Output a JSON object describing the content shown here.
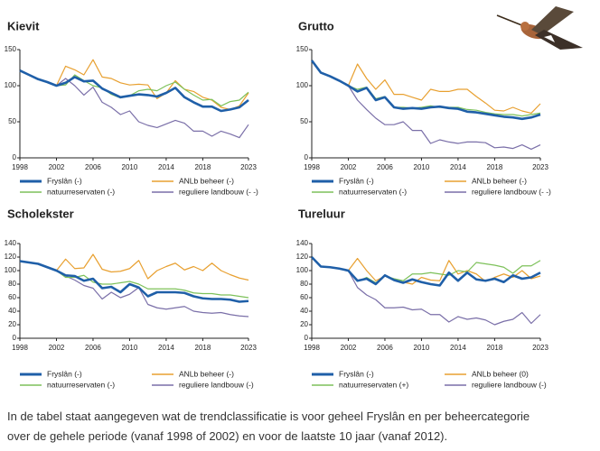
{
  "chart_data": [
    {
      "type": "line",
      "title": "Kievit",
      "x": [
        1998,
        1999,
        2000,
        2001,
        2002,
        2003,
        2004,
        2005,
        2006,
        2007,
        2008,
        2009,
        2010,
        2011,
        2012,
        2013,
        2014,
        2015,
        2016,
        2017,
        2018,
        2019,
        2020,
        2021,
        2022,
        2023
      ],
      "xlim": [
        1998,
        2023
      ],
      "xticks": [
        1998,
        2002,
        2006,
        2010,
        2014,
        2018,
        2023
      ],
      "ylim": [
        0,
        150
      ],
      "yticks": [
        0,
        50,
        100,
        150
      ],
      "series": [
        {
          "name": "Fryslân (-)",
          "color": "#1f5fa8",
          "values": [
            121,
            115,
            109,
            105,
            100,
            104,
            112,
            106,
            107,
            96,
            90,
            84,
            86,
            88,
            87,
            85,
            90,
            97,
            84,
            77,
            71,
            71,
            65,
            67,
            70,
            80
          ]
        },
        {
          "name": "ANLb beheer (-)",
          "color": "#e8a030",
          "values": [
            null,
            null,
            null,
            null,
            100,
            127,
            122,
            115,
            136,
            112,
            110,
            104,
            101,
            102,
            101,
            82,
            90,
            107,
            95,
            92,
            84,
            80,
            70,
            67,
            72,
            90
          ]
        },
        {
          "name": "natuurreservaten (-)",
          "color": "#7dc15a",
          "values": [
            null,
            null,
            null,
            null,
            100,
            101,
            115,
            107,
            100,
            97,
            88,
            83,
            86,
            93,
            95,
            93,
            100,
            105,
            95,
            87,
            80,
            81,
            72,
            78,
            80,
            91
          ]
        },
        {
          "name": "reguliere landbouw (- -)",
          "color": "#7a6fa8",
          "values": [
            null,
            null,
            null,
            null,
            100,
            110,
            100,
            87,
            98,
            77,
            70,
            60,
            65,
            50,
            45,
            42,
            47,
            52,
            48,
            37,
            37,
            30,
            37,
            33,
            28,
            46
          ]
        }
      ]
    },
    {
      "type": "line",
      "title": "Grutto",
      "x": [
        1998,
        1999,
        2000,
        2001,
        2002,
        2003,
        2004,
        2005,
        2006,
        2007,
        2008,
        2009,
        2010,
        2011,
        2012,
        2013,
        2014,
        2015,
        2016,
        2017,
        2018,
        2019,
        2020,
        2021,
        2022,
        2023
      ],
      "xlim": [
        1998,
        2023
      ],
      "xticks": [
        1998,
        2002,
        2006,
        2010,
        2014,
        2018,
        2023
      ],
      "ylim": [
        0,
        150
      ],
      "yticks": [
        0,
        50,
        100,
        150
      ],
      "series": [
        {
          "name": "Fryslân (-)",
          "color": "#1f5fa8",
          "values": [
            135,
            118,
            113,
            107,
            100,
            92,
            97,
            80,
            84,
            70,
            68,
            69,
            68,
            70,
            71,
            69,
            68,
            64,
            63,
            61,
            59,
            57,
            56,
            54,
            56,
            60
          ]
        },
        {
          "name": "ANLb beheer (-)",
          "color": "#e8a030",
          "values": [
            null,
            null,
            null,
            null,
            100,
            130,
            110,
            95,
            108,
            88,
            88,
            84,
            80,
            95,
            92,
            92,
            95,
            95,
            85,
            76,
            66,
            65,
            70,
            65,
            62,
            75
          ]
        },
        {
          "name": "natuurreservaten (-)",
          "color": "#7dc15a",
          "values": [
            null,
            null,
            null,
            null,
            100,
            95,
            98,
            82,
            85,
            70,
            70,
            69,
            70,
            72,
            70,
            70,
            70,
            67,
            66,
            63,
            61,
            60,
            60,
            58,
            60,
            62
          ]
        },
        {
          "name": "reguliere landbouw (- -)",
          "color": "#7a6fa8",
          "values": [
            null,
            null,
            null,
            null,
            100,
            80,
            67,
            55,
            46,
            46,
            50,
            38,
            38,
            20,
            25,
            22,
            20,
            22,
            22,
            21,
            14,
            15,
            13,
            18,
            12,
            18
          ]
        }
      ]
    },
    {
      "type": "line",
      "title": "Scholekster",
      "x": [
        1998,
        1999,
        2000,
        2001,
        2002,
        2003,
        2004,
        2005,
        2006,
        2007,
        2008,
        2009,
        2010,
        2011,
        2012,
        2013,
        2014,
        2015,
        2016,
        2017,
        2018,
        2019,
        2020,
        2021,
        2022,
        2023
      ],
      "xlim": [
        1998,
        2023
      ],
      "xticks": [
        1998,
        2002,
        2006,
        2010,
        2014,
        2018,
        2023
      ],
      "ylim": [
        0,
        140
      ],
      "yticks": [
        0,
        20,
        40,
        60,
        80,
        100,
        120,
        140
      ],
      "series": [
        {
          "name": "Fryslân (-)",
          "color": "#1f5fa8",
          "values": [
            114,
            112,
            110,
            105,
            100,
            93,
            92,
            85,
            88,
            74,
            76,
            68,
            80,
            75,
            62,
            68,
            68,
            68,
            67,
            62,
            59,
            58,
            58,
            57,
            54,
            55
          ]
        },
        {
          "name": "ANLb beheer (-)",
          "color": "#e8a030",
          "values": [
            null,
            null,
            null,
            null,
            100,
            117,
            103,
            104,
            124,
            102,
            98,
            99,
            103,
            115,
            88,
            100,
            106,
            111,
            101,
            106,
            100,
            111,
            100,
            94,
            89,
            86
          ]
        },
        {
          "name": "natuurreservaten (-)",
          "color": "#7dc15a",
          "values": [
            null,
            null,
            null,
            null,
            100,
            90,
            90,
            93,
            83,
            80,
            80,
            82,
            84,
            80,
            73,
            73,
            73,
            73,
            71,
            67,
            66,
            66,
            64,
            64,
            62,
            60
          ]
        },
        {
          "name": "reguliere landbouw (-)",
          "color": "#7a6fa8",
          "values": [
            null,
            null,
            null,
            null,
            100,
            92,
            86,
            78,
            74,
            58,
            68,
            60,
            65,
            75,
            50,
            45,
            43,
            45,
            47,
            40,
            38,
            37,
            38,
            35,
            33,
            32
          ]
        }
      ]
    },
    {
      "type": "line",
      "title": "Tureluur",
      "x": [
        1998,
        1999,
        2000,
        2001,
        2002,
        2003,
        2004,
        2005,
        2006,
        2007,
        2008,
        2009,
        2010,
        2011,
        2012,
        2013,
        2014,
        2015,
        2016,
        2017,
        2018,
        2019,
        2020,
        2021,
        2022,
        2023
      ],
      "xlim": [
        1998,
        2023
      ],
      "xticks": [
        1998,
        2002,
        2006,
        2010,
        2014,
        2018,
        2023
      ],
      "ylim": [
        0,
        140
      ],
      "yticks": [
        0,
        20,
        40,
        60,
        80,
        100,
        120,
        140
      ],
      "series": [
        {
          "name": "Fryslân (-)",
          "color": "#1f5fa8",
          "values": [
            120,
            106,
            105,
            103,
            100,
            85,
            88,
            80,
            93,
            86,
            82,
            87,
            83,
            80,
            78,
            97,
            85,
            97,
            87,
            85,
            88,
            83,
            93,
            88,
            90,
            97
          ]
        },
        {
          "name": "ANLb beheer (0)",
          "color": "#e8a030",
          "values": [
            null,
            null,
            null,
            null,
            100,
            118,
            100,
            85,
            92,
            86,
            83,
            80,
            90,
            86,
            85,
            115,
            95,
            100,
            95,
            84,
            90,
            95,
            90,
            100,
            88,
            92
          ]
        },
        {
          "name": "natuurreservaten (+)",
          "color": "#7dc15a",
          "values": [
            null,
            null,
            null,
            null,
            100,
            84,
            90,
            82,
            92,
            88,
            85,
            95,
            95,
            97,
            95,
            93,
            100,
            98,
            112,
            110,
            108,
            105,
            96,
            107,
            107,
            115
          ]
        },
        {
          "name": "reguliere landbouw (-)",
          "color": "#7a6fa8",
          "values": [
            null,
            null,
            null,
            null,
            100,
            75,
            64,
            57,
            45,
            45,
            46,
            42,
            43,
            35,
            35,
            24,
            32,
            28,
            30,
            27,
            20,
            25,
            28,
            38,
            22,
            35
          ]
        }
      ]
    }
  ],
  "caption": [
    "In de tabel staat aangegeven wat de trendclassificatie is voor geheel Fryslân en per beheercategorie",
    "over de gehele periode (vanaf 1998 of 2002) en voor de laatste 10 jaar (vanaf 2012)."
  ]
}
